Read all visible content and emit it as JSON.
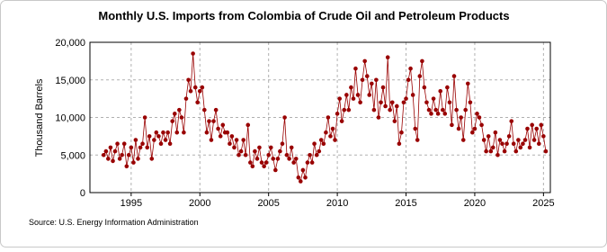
{
  "chart_data": {
    "type": "line",
    "title": "Monthly U.S. Imports from Colombia of Crude Oil and Petroleum Products",
    "y_label": "Thousand Barrels",
    "source": "Source: U.S. Energy Information Administration",
    "color": "#990000",
    "grid": true,
    "xlim": [
      1992,
      2025.5
    ],
    "xticks": [
      1995,
      2000,
      2005,
      2010,
      2015,
      2020,
      2025
    ],
    "ylim": [
      0,
      20000
    ],
    "yticks": [
      0,
      {
        "value": 5000,
        "label": "5,000"
      },
      {
        "value": 10000,
        "label": "10,000"
      },
      {
        "value": 15000,
        "label": "15,000"
      },
      {
        "value": 20000,
        "label": "20,000"
      }
    ],
    "x": [
      1993,
      1993.17,
      1993.33,
      1993.5,
      1993.67,
      1993.83,
      1994,
      1994.17,
      1994.33,
      1994.5,
      1994.67,
      1994.83,
      1995,
      1995.17,
      1995.33,
      1995.5,
      1995.67,
      1995.83,
      1996,
      1996.17,
      1996.33,
      1996.5,
      1996.67,
      1996.83,
      1997,
      1997.17,
      1997.33,
      1997.5,
      1997.67,
      1997.83,
      1998,
      1998.17,
      1998.33,
      1998.5,
      1998.67,
      1998.83,
      1999,
      1999.17,
      1999.33,
      1999.5,
      1999.67,
      1999.83,
      2000,
      2000.17,
      2000.33,
      2000.5,
      2000.67,
      2000.83,
      2001,
      2001.17,
      2001.33,
      2001.5,
      2001.67,
      2001.83,
      2002,
      2002.17,
      2002.33,
      2002.5,
      2002.67,
      2002.83,
      2003,
      2003.17,
      2003.33,
      2003.5,
      2003.67,
      2003.83,
      2004,
      2004.17,
      2004.33,
      2004.5,
      2004.67,
      2004.83,
      2005,
      2005.17,
      2005.33,
      2005.5,
      2005.67,
      2005.83,
      2006,
      2006.17,
      2006.33,
      2006.5,
      2006.67,
      2006.83,
      2007,
      2007.17,
      2007.33,
      2007.5,
      2007.67,
      2007.83,
      2008,
      2008.17,
      2008.33,
      2008.5,
      2008.67,
      2008.83,
      2009,
      2009.17,
      2009.33,
      2009.5,
      2009.67,
      2009.83,
      2010,
      2010.17,
      2010.33,
      2010.5,
      2010.67,
      2010.83,
      2011,
      2011.17,
      2011.33,
      2011.5,
      2011.67,
      2011.83,
      2012,
      2012.17,
      2012.33,
      2012.5,
      2012.67,
      2012.83,
      2013,
      2013.17,
      2013.33,
      2013.5,
      2013.67,
      2013.83,
      2014,
      2014.17,
      2014.33,
      2014.5,
      2014.67,
      2014.83,
      2015,
      2015.17,
      2015.33,
      2015.5,
      2015.67,
      2015.83,
      2016,
      2016.17,
      2016.33,
      2016.5,
      2016.67,
      2016.83,
      2017,
      2017.17,
      2017.33,
      2017.5,
      2017.67,
      2017.83,
      2018,
      2018.17,
      2018.33,
      2018.5,
      2018.67,
      2018.83,
      2019,
      2019.17,
      2019.33,
      2019.5,
      2019.67,
      2019.83,
      2020,
      2020.17,
      2020.33,
      2020.5,
      2020.67,
      2020.83,
      2021,
      2021.17,
      2021.33,
      2021.5,
      2021.67,
      2021.83,
      2022,
      2022.17,
      2022.33,
      2022.5,
      2022.67,
      2022.83,
      2023,
      2023.17,
      2023.33,
      2023.5,
      2023.67,
      2023.83,
      2024,
      2024.17,
      2024.33,
      2024.5,
      2024.67,
      2024.83,
      2025,
      2025.17
    ],
    "values": [
      5000,
      5500,
      4500,
      6000,
      4200,
      5500,
      6500,
      4500,
      5000,
      6500,
      3500,
      5000,
      6000,
      4000,
      7000,
      4500,
      6000,
      6500,
      10000,
      6000,
      7500,
      4500,
      7000,
      8000,
      7500,
      6500,
      8000,
      7000,
      8000,
      6500,
      9500,
      10500,
      8000,
      11000,
      10000,
      8000,
      12500,
      15000,
      13500,
      18500,
      14000,
      12000,
      13500,
      14000,
      11000,
      8000,
      9500,
      7000,
      9500,
      11000,
      8500,
      7500,
      9000,
      8000,
      8000,
      6500,
      7500,
      6000,
      7000,
      5000,
      5500,
      7000,
      5000,
      9000,
      4000,
      3500,
      5500,
      4500,
      6000,
      4000,
      3500,
      4000,
      5000,
      6000,
      4500,
      3000,
      4500,
      5500,
      6500,
      10000,
      5000,
      4500,
      6000,
      4000,
      4500,
      2000,
      1500,
      3000,
      2000,
      4000,
      5000,
      4000,
      6500,
      5000,
      5500,
      7000,
      6500,
      8000,
      10000,
      7500,
      8500,
      7000,
      10500,
      12500,
      9500,
      11000,
      13000,
      11000,
      14000,
      12500,
      16500,
      13000,
      12000,
      15000,
      17500,
      15500,
      13000,
      14500,
      11000,
      15000,
      10000,
      12000,
      14000,
      11500,
      18000,
      11000,
      12000,
      9500,
      11500,
      6500,
      8000,
      12000,
      12500,
      15000,
      16500,
      13000,
      8500,
      7000,
      15500,
      17500,
      14000,
      12000,
      11000,
      10500,
      12500,
      11000,
      10500,
      13500,
      11000,
      10500,
      14000,
      12000,
      9000,
      15500,
      11000,
      8500,
      10000,
      7000,
      11000,
      14500,
      12000,
      8000,
      8500,
      10500,
      10000,
      9000,
      7000,
      5500,
      7500,
      5500,
      6000,
      8000,
      5000,
      7000,
      6500,
      5500,
      6500,
      7500,
      9500,
      6500,
      5500,
      7000,
      6000,
      6500,
      7000,
      8500,
      6000,
      9000,
      7000,
      8500,
      6500,
      9000,
      7500,
      5500
    ]
  }
}
